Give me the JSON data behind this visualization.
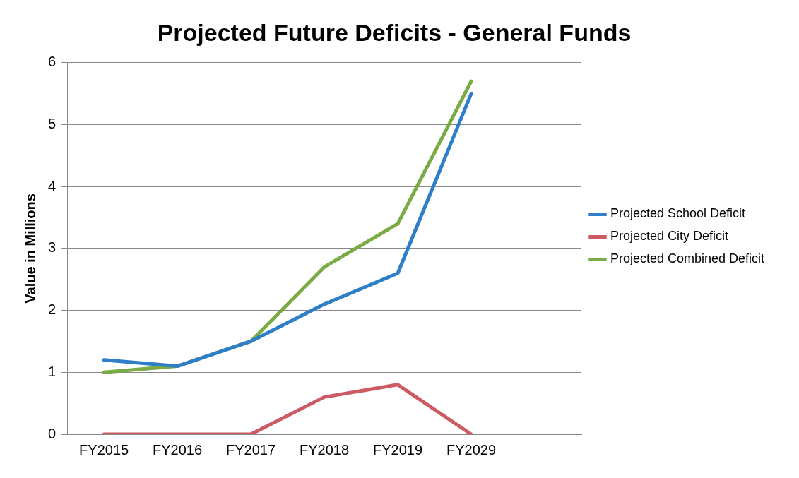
{
  "chart_data": {
    "type": "line",
    "title": "Projected Future Deficits - General Funds",
    "ylabel": "Value in Millions",
    "categories": [
      "FY2015",
      "FY2016",
      "FY2017",
      "FY2018",
      "FY2019",
      "FY2029",
      null
    ],
    "series": [
      {
        "name": "Projected School Deficit",
        "color": "#2e7fc8",
        "values": [
          1.2,
          1.1,
          1.5,
          2.1,
          2.6,
          5.5,
          null
        ]
      },
      {
        "name": "Projected City Deficit",
        "color": "#cc5b63",
        "values": [
          0,
          0,
          0,
          0.6,
          0.8,
          0,
          null
        ]
      },
      {
        "name": "Projected Combined Deficit",
        "color": "#7aab45",
        "values": [
          1.0,
          1.1,
          1.5,
          2.7,
          3.4,
          5.7,
          null
        ]
      }
    ],
    "ylim": [
      0,
      6
    ],
    "yticks": [
      0,
      1,
      2,
      3,
      4,
      5,
      6
    ],
    "grid": "y",
    "legend": "right",
    "marker": "none",
    "line_style": "solid"
  }
}
